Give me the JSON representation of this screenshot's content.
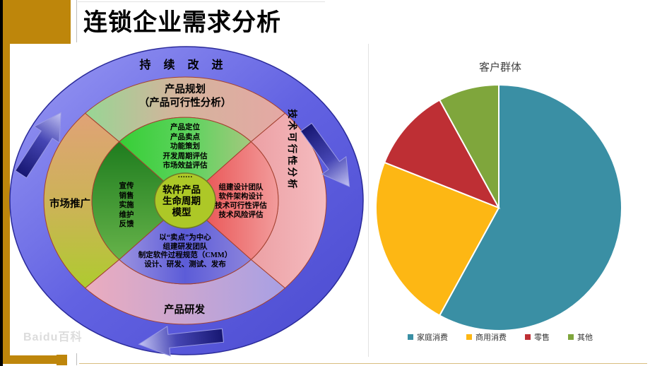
{
  "slide": {
    "title": "连锁企业需求分析",
    "watermark": "Baidu百科"
  },
  "diagram": {
    "outer_ring_label": "持 续 改 进",
    "ring_labels": {
      "top": "产品规划\n（产品可行性分析）",
      "right": "技术可行性分析",
      "bottom": "产品研发",
      "left": "市场推广"
    },
    "inner_details": {
      "top": "产品定位\n产品卖点\n功能策划\n开发周期评估\n市场效益评估\n……",
      "right": "组建设计团队\n软件架构设计\n技术可行性评估\n技术风险评估",
      "bottom": "以“卖点”为中心\n组建研发团队\n制定软件过程规范（CMM）\n设计、研发、测试、发布",
      "left": "宣传\n销售\n实施\n维护\n反馈"
    },
    "center_label": "软件产品\n生命周期\n模型"
  },
  "chart_data": {
    "type": "pie",
    "title": "客户群体",
    "categories": [
      "家庭消费",
      "商用消费",
      "零售",
      "其他"
    ],
    "values": [
      58,
      23,
      11,
      8
    ],
    "colors": [
      "#3A8FA4",
      "#FDB714",
      "#BE2F34",
      "#7FA63C"
    ],
    "start_angle_deg": 0,
    "direction": "clockwise",
    "legend_position": "bottom"
  }
}
